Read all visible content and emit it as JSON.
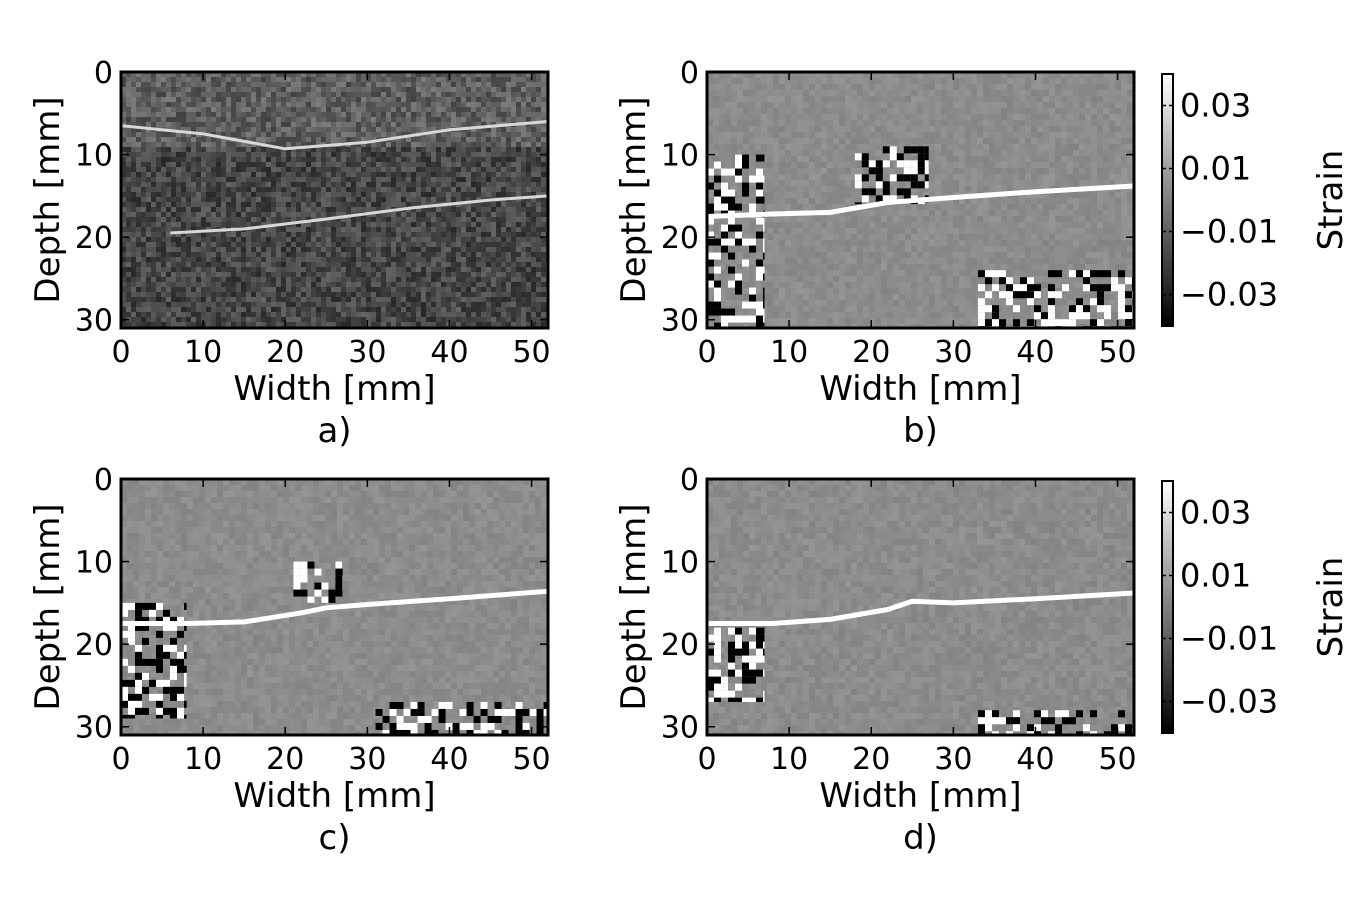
{
  "chart_data": [
    {
      "type": "heatmap",
      "panel": "a)",
      "xlabel": "Width [mm]",
      "ylabel": "Depth [mm]",
      "xlim": [
        0,
        52
      ],
      "ylim": [
        31,
        0
      ],
      "xticks": [
        "0",
        "10",
        "20",
        "30",
        "40",
        "50"
      ],
      "yticks": [
        "0",
        "10",
        "20",
        "30"
      ],
      "colorbar": null,
      "image": "B-mode ultrasound, grayscale speckle with bright fascia lines near depth 6-9 mm and 15-20 mm",
      "features": [
        {
          "kind": "bright-line",
          "points": [
            [
              0,
              6.5
            ],
            [
              10,
              7.5
            ],
            [
              20,
              9.3
            ],
            [
              30,
              8.5
            ],
            [
              40,
              7.0
            ],
            [
              52,
              6.0
            ]
          ]
        },
        {
          "kind": "bright-line",
          "points": [
            [
              6,
              19.5
            ],
            [
              15,
              19.0
            ],
            [
              25,
              17.8
            ],
            [
              35,
              16.5
            ],
            [
              45,
              15.5
            ],
            [
              52,
              15.0
            ]
          ]
        }
      ]
    },
    {
      "type": "heatmap",
      "panel": "b)",
      "xlabel": "Width [mm]",
      "ylabel": "Depth [mm]",
      "xlim": [
        0,
        52
      ],
      "ylim": [
        31,
        0
      ],
      "xticks": [
        "0",
        "10",
        "20",
        "30",
        "40",
        "50"
      ],
      "yticks": [
        "0",
        "10",
        "20",
        "30"
      ],
      "colorbar": {
        "label": "Strain",
        "range": [
          -0.04,
          0.04
        ],
        "ticks": [
          "0.03",
          "0.01",
          "−0.01",
          "−0.03"
        ],
        "colors": [
          "#000000",
          "#ffffff"
        ]
      },
      "features": [
        {
          "kind": "strain-line",
          "points": [
            [
              0,
              17.5
            ],
            [
              8,
              17.2
            ],
            [
              15,
              17.0
            ],
            [
              22,
              15.8
            ],
            [
              30,
              15.2
            ],
            [
              40,
              14.5
            ],
            [
              52,
              13.8
            ]
          ]
        },
        {
          "kind": "noise-region",
          "region": [
            0,
            10,
            7,
            31
          ]
        },
        {
          "kind": "noise-region",
          "region": [
            18,
            9,
            27,
            16
          ]
        },
        {
          "kind": "noise-region",
          "region": [
            33,
            24,
            52,
            31
          ]
        }
      ]
    },
    {
      "type": "heatmap",
      "panel": "c)",
      "xlabel": "Width [mm]",
      "ylabel": "Depth [mm]",
      "xlim": [
        0,
        52
      ],
      "ylim": [
        31,
        0
      ],
      "xticks": [
        "0",
        "10",
        "20",
        "30",
        "40",
        "50"
      ],
      "yticks": [
        "0",
        "10",
        "20",
        "30"
      ],
      "colorbar": null,
      "features": [
        {
          "kind": "strain-line",
          "points": [
            [
              0,
              17.5
            ],
            [
              8,
              17.5
            ],
            [
              15,
              17.3
            ],
            [
              22,
              16.2
            ],
            [
              25,
              15.6
            ],
            [
              30,
              15.2
            ],
            [
              40,
              14.5
            ],
            [
              52,
              13.6
            ]
          ]
        },
        {
          "kind": "noise-region",
          "region": [
            0,
            15,
            8,
            29
          ]
        },
        {
          "kind": "noise-region",
          "region": [
            21,
            10,
            27,
            15
          ]
        },
        {
          "kind": "noise-region",
          "region": [
            31,
            27,
            52,
            31
          ]
        }
      ]
    },
    {
      "type": "heatmap",
      "panel": "d)",
      "xlabel": "Width [mm]",
      "ylabel": "Depth [mm]",
      "xlim": [
        0,
        52
      ],
      "ylim": [
        31,
        0
      ],
      "xticks": [
        "0",
        "10",
        "20",
        "30",
        "40",
        "50"
      ],
      "yticks": [
        "0",
        "10",
        "20",
        "30"
      ],
      "colorbar": {
        "label": "Strain",
        "range": [
          -0.04,
          0.04
        ],
        "ticks": [
          "0.03",
          "0.01",
          "−0.01",
          "−0.03"
        ],
        "colors": [
          "#000000",
          "#ffffff"
        ]
      },
      "features": [
        {
          "kind": "strain-line",
          "points": [
            [
              0,
              17.5
            ],
            [
              8,
              17.5
            ],
            [
              15,
              17.0
            ],
            [
              22,
              15.8
            ],
            [
              25,
              14.8
            ],
            [
              30,
              15.0
            ],
            [
              40,
              14.5
            ],
            [
              52,
              13.8
            ]
          ]
        },
        {
          "kind": "noise-region",
          "region": [
            0,
            18,
            7,
            27
          ]
        },
        {
          "kind": "noise-region",
          "region": [
            33,
            28,
            52,
            31
          ]
        }
      ]
    }
  ]
}
